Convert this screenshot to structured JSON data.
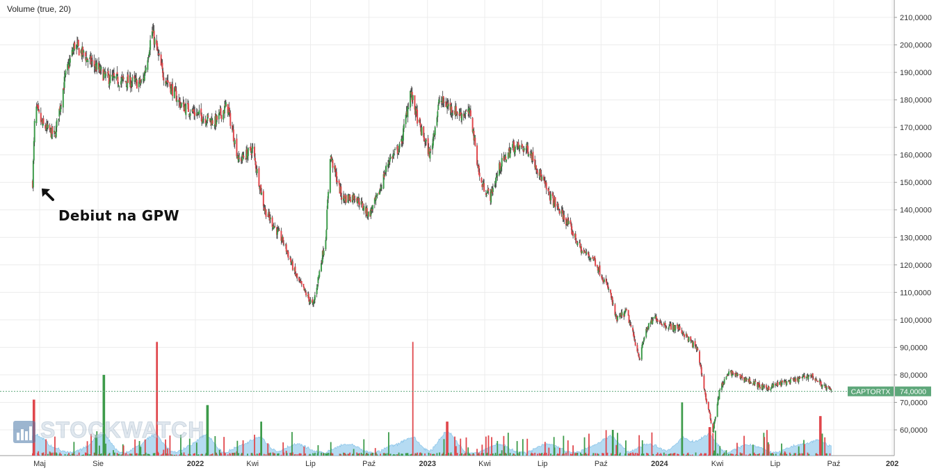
{
  "indicator_label": "Volume (true, 20)",
  "annotation": "Debiut na GPW",
  "watermark": "STOCKWATCH",
  "colors": {
    "up": "#3d9b4a",
    "down": "#e0474c",
    "wick": "#333333",
    "vol_ma": "#9ccfee",
    "last_price": "#5ea77a",
    "grid": "#ececec"
  },
  "chart_data": {
    "type": "candlestick",
    "ticker": "CAPTORTX",
    "last_price": 74.0,
    "last_price_label": "74,0000",
    "y_ticks": [
      "60,0000",
      "70,0000",
      "80,0000",
      "90,0000",
      "100,0000",
      "110,0000",
      "120,0000",
      "130,0000",
      "140,0000",
      "150,0000",
      "160,0000",
      "170,0000",
      "180,0000",
      "190,0000",
      "200,0000",
      "210,0000"
    ],
    "y_tick_values": [
      60,
      70,
      80,
      90,
      100,
      110,
      120,
      130,
      140,
      150,
      160,
      170,
      180,
      190,
      200,
      210
    ],
    "ylim": [
      50,
      213
    ],
    "x_ticks": [
      "Maj",
      "Sie",
      "2022",
      "Kwi",
      "Lip",
      "Paź",
      "2023",
      "Kwi",
      "Lip",
      "Paź",
      "2024",
      "Kwi",
      "Lip",
      "Paź",
      "202"
    ],
    "x_tick_dates": [
      "2021-05-01",
      "2021-08-01",
      "2022-01-01",
      "2022-04-01",
      "2022-07-01",
      "2022-10-01",
      "2023-01-01",
      "2023-04-01",
      "2023-07-01",
      "2023-10-01",
      "2024-01-01",
      "2024-04-01",
      "2024-07-01",
      "2024-10-01",
      "2025-01-01"
    ],
    "price_path": [
      [
        "2021-04-20",
        150
      ],
      [
        "2021-04-24",
        178
      ],
      [
        "2021-05-05",
        171
      ],
      [
        "2021-05-25",
        167
      ],
      [
        "2021-06-10",
        188
      ],
      [
        "2021-06-25",
        200
      ],
      [
        "2021-07-15",
        195
      ],
      [
        "2021-08-15",
        188
      ],
      [
        "2021-09-05",
        187
      ],
      [
        "2021-10-10",
        186
      ],
      [
        "2021-10-25",
        205
      ],
      [
        "2021-11-10",
        190
      ],
      [
        "2021-12-10",
        178
      ],
      [
        "2022-01-10",
        174
      ],
      [
        "2022-02-01",
        172
      ],
      [
        "2022-02-20",
        178
      ],
      [
        "2022-03-10",
        158
      ],
      [
        "2022-04-01",
        162
      ],
      [
        "2022-04-20",
        140
      ],
      [
        "2022-05-20",
        128
      ],
      [
        "2022-06-10",
        115
      ],
      [
        "2022-07-05",
        105
      ],
      [
        "2022-07-25",
        130
      ],
      [
        "2022-08-01",
        160
      ],
      [
        "2022-08-20",
        144
      ],
      [
        "2022-09-10",
        145
      ],
      [
        "2022-10-01",
        138
      ],
      [
        "2022-10-15",
        145
      ],
      [
        "2022-11-01",
        158
      ],
      [
        "2022-11-20",
        163
      ],
      [
        "2022-12-05",
        183
      ],
      [
        "2022-12-20",
        170
      ],
      [
        "2023-01-05",
        160
      ],
      [
        "2023-01-20",
        180
      ],
      [
        "2023-02-20",
        175
      ],
      [
        "2023-03-10",
        175
      ],
      [
        "2023-03-25",
        150
      ],
      [
        "2023-04-10",
        145
      ],
      [
        "2023-04-25",
        156
      ],
      [
        "2023-05-15",
        163
      ],
      [
        "2023-06-10",
        162
      ],
      [
        "2023-07-10",
        146
      ],
      [
        "2023-08-10",
        135
      ],
      [
        "2023-09-01",
        125
      ],
      [
        "2023-09-20",
        122
      ],
      [
        "2023-10-15",
        110
      ],
      [
        "2023-10-25",
        100
      ],
      [
        "2023-11-10",
        103
      ],
      [
        "2023-12-01",
        86
      ],
      [
        "2023-12-10",
        96
      ],
      [
        "2023-12-25",
        101
      ],
      [
        "2024-01-10",
        98
      ],
      [
        "2024-02-01",
        97
      ],
      [
        "2024-03-01",
        89
      ],
      [
        "2024-03-15",
        70
      ],
      [
        "2024-03-25",
        60
      ],
      [
        "2024-04-05",
        75
      ],
      [
        "2024-04-20",
        81
      ],
      [
        "2024-05-20",
        78
      ],
      [
        "2024-06-15",
        75
      ],
      [
        "2024-07-10",
        77
      ],
      [
        "2024-08-01",
        78
      ],
      [
        "2024-08-25",
        80
      ],
      [
        "2024-09-15",
        76
      ],
      [
        "2024-09-28",
        74
      ]
    ],
    "volume_spikes": [
      [
        "2021-04-22",
        71,
        "down"
      ],
      [
        "2021-08-10",
        80,
        "up"
      ],
      [
        "2021-11-01",
        92,
        "down"
      ],
      [
        "2022-01-20",
        69,
        "up"
      ],
      [
        "2022-04-15",
        63,
        "up"
      ],
      [
        "2022-12-10",
        92,
        "down"
      ],
      [
        "2023-02-01",
        63,
        "down"
      ],
      [
        "2023-10-20",
        60,
        "up"
      ],
      [
        "2024-02-05",
        70,
        "up"
      ],
      [
        "2024-03-20",
        61,
        "down"
      ],
      [
        "2024-09-10",
        65,
        "down"
      ]
    ]
  }
}
